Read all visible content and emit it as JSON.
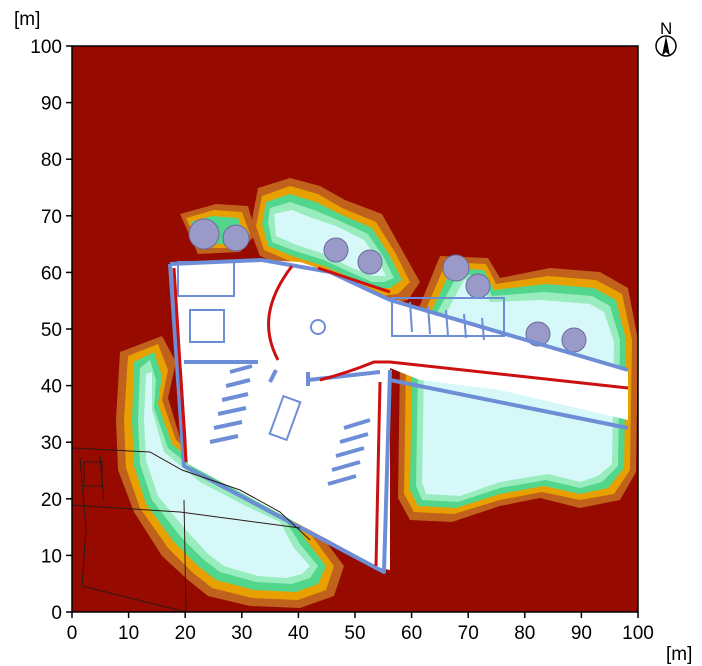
{
  "map": {
    "x_unit": "[m]",
    "y_unit": "[m]",
    "x_range": [
      0,
      100
    ],
    "y_range": [
      0,
      100
    ],
    "x_ticks": [
      "0",
      "10",
      "20",
      "30",
      "40",
      "50",
      "60",
      "70",
      "80",
      "90",
      "100"
    ],
    "y_ticks": [
      "0",
      "10",
      "20",
      "30",
      "40",
      "50",
      "60",
      "70",
      "80",
      "90",
      "100"
    ],
    "north_label": "N",
    "colors": {
      "background_zone": "#960a00",
      "zone_brown": "#c0611c",
      "zone_orange": "#e8a000",
      "zone_green": "#52d68c",
      "zone_lightgreen": "#98ecbe",
      "zone_cyan": "#d6f8f8",
      "building_fill": "#ffffff",
      "wall_blue": "#6d8ed6",
      "wall_red": "#cc1010",
      "tree": "#9a9ac8"
    },
    "icons": [
      "north-arrow-icon",
      "tree-icon"
    ]
  }
}
